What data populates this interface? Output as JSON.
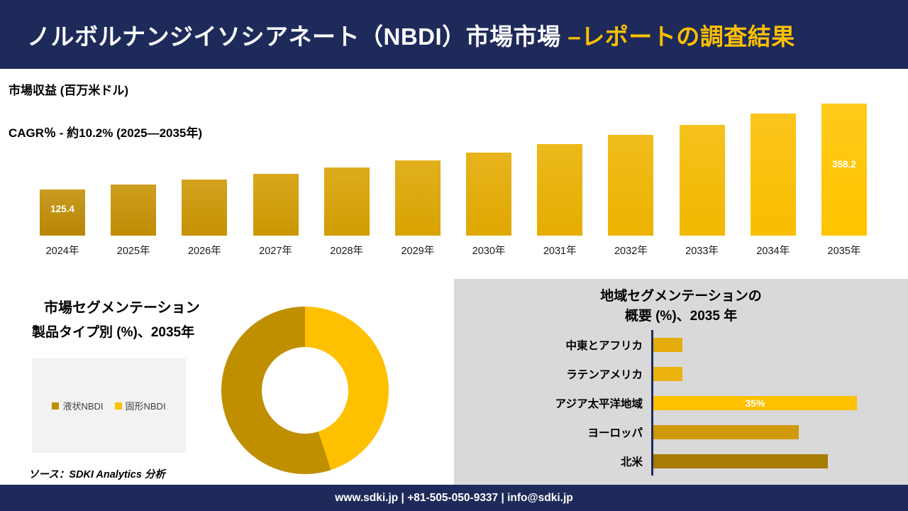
{
  "header": {
    "title_main": "ノルボルナンジイソシアネート（NBDI）市場市場 ",
    "title_accent": "–レポートの調査結果"
  },
  "revenue_chart": {
    "metric_label": "市場収益 (百万米ドル)",
    "cagr_label": "CAGR％ - 約10.2% (2025―2035年)"
  },
  "segmentation": {
    "title_line1": "市場セグメンテーション",
    "title_line2": "製品タイプ別 (%)、2035年",
    "legend": [
      {
        "label": "液状NBDI",
        "color": "#BF8F00"
      },
      {
        "label": "固形NBDI",
        "color": "#FFC000"
      }
    ],
    "source": "ソース：SDKI Analytics 分析"
  },
  "regional": {
    "title_line1": "地域セグメンテーションの",
    "title_line2": "概要 (%)、2035 年"
  },
  "footer": {
    "contact": "www.sdki.jp | +81-505-050-9337 | info@sdki.jp"
  },
  "colors": {
    "navy": "#1e2a5a",
    "accent_yellow": "#ffc000",
    "panel_gray": "#d9d9d9"
  },
  "chart_data": [
    {
      "type": "bar",
      "title": "市場収益 (百万米ドル)",
      "subtitle": "CAGR％ - 約10.2% (2025―2035年)",
      "categories": [
        "2024年",
        "2025年",
        "2026年",
        "2027年",
        "2028年",
        "2029年",
        "2030年",
        "2031年",
        "2032年",
        "2033年",
        "2034年",
        "2035年"
      ],
      "values": [
        125.4,
        138.2,
        152.3,
        167.8,
        184.9,
        203.8,
        224.6,
        247.5,
        272.7,
        300.5,
        331.2,
        358.2
      ],
      "bar_labels": {
        "0": "125.4",
        "11": "358.2"
      },
      "color_start": "#BA8706",
      "color_end": "#FFC400",
      "ylim": [
        0,
        380
      ],
      "grid": false,
      "legend": "none"
    },
    {
      "type": "pie",
      "donut": true,
      "title": "市場セグメンテーション 製品タイプ別 (%)、2035年",
      "slices": [
        {
          "label": "固形NBDI",
          "value": 45,
          "color": "#FFC000"
        },
        {
          "label": "液状NBDI",
          "value": 55,
          "color": "#BF8F00"
        }
      ],
      "legend_position": "left"
    },
    {
      "type": "bar",
      "orientation": "horizontal",
      "title": "地域セグメンテーションの概要 (%)、2035 年",
      "rows": [
        {
          "label": "中東とアフリカ",
          "value": 5,
          "color": "#E6AC0B",
          "display_label": ""
        },
        {
          "label": "ラテンアメリカ",
          "value": 5,
          "color": "#ECB30C",
          "display_label": ""
        },
        {
          "label": "アジア太平洋地域",
          "value": 35,
          "color": "#FFC000",
          "display_label": "35%"
        },
        {
          "label": "ヨーロッパ",
          "value": 25,
          "color": "#D09A06",
          "display_label": ""
        },
        {
          "label": "北米",
          "value": 30,
          "color": "#A67C02",
          "display_label": ""
        }
      ],
      "xlim": [
        0,
        40
      ],
      "grid": false
    }
  ]
}
